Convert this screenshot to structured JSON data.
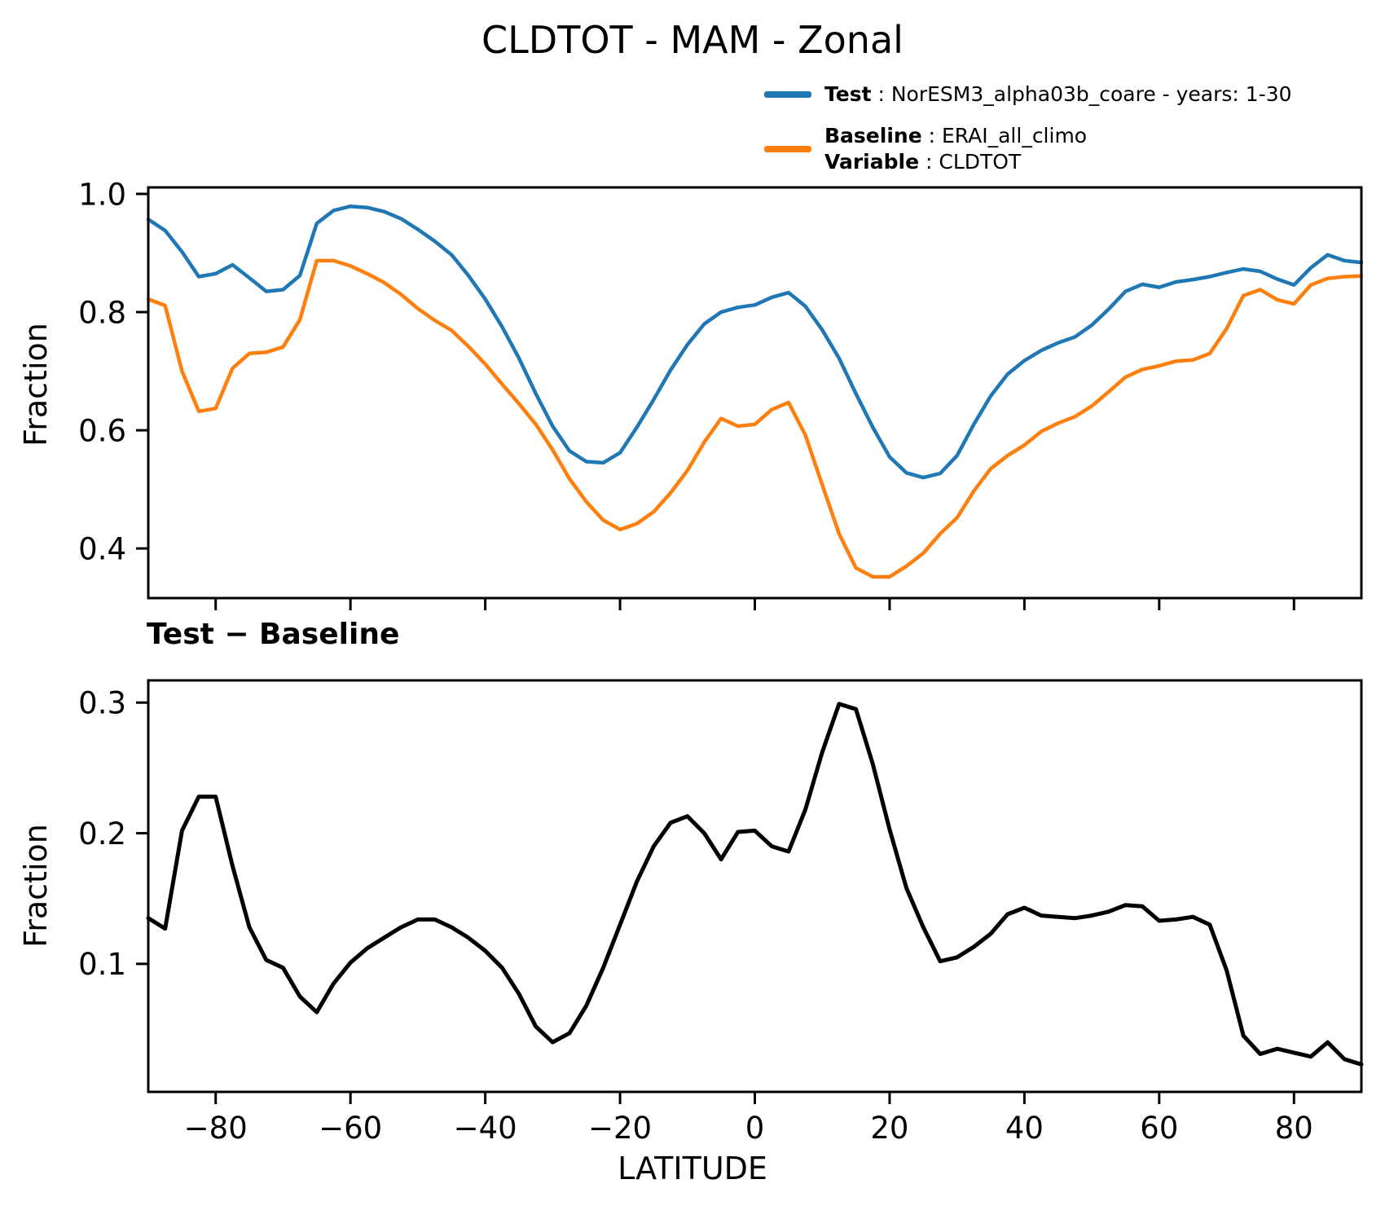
{
  "figure": {
    "title": "CLDTOT - MAM - Zonal",
    "subtitle": "Test − Baseline",
    "legend": {
      "test": {
        "bold": "Test",
        "rest": " : NorESM3_alpha03b_coare - years: 1-30"
      },
      "baseline": {
        "bold": "Baseline",
        "rest": " : ERAI_all_climo"
      },
      "variable": {
        "bold": "Variable",
        "rest": " : CLDTOT"
      }
    },
    "colors": {
      "test": "#1f77b4",
      "baseline": "#ff7f0e",
      "diff": "#000000"
    }
  },
  "chart_data": [
    {
      "type": "line",
      "title": "CLDTOT - MAM - Zonal",
      "xlabel": "",
      "ylabel": "Fraction",
      "xlim": [
        -90,
        90
      ],
      "ylim": [
        0.316,
        1.011
      ],
      "xticks": [
        -80,
        -60,
        -40,
        -20,
        0,
        20,
        40,
        60,
        80
      ],
      "xtick_labels": [],
      "yticks": [
        0.4,
        0.6,
        0.8,
        1.0
      ],
      "ytick_labels": [
        "0.4",
        "0.6",
        "0.8",
        "1.0"
      ],
      "grid": false,
      "legend_position": "above-right",
      "x": [
        -90,
        -87.5,
        -85,
        -82.5,
        -80,
        -77.5,
        -75,
        -72.5,
        -70,
        -67.5,
        -65,
        -62.5,
        -60,
        -57.5,
        -55,
        -52.5,
        -50,
        -47.5,
        -45,
        -42.5,
        -40,
        -37.5,
        -35,
        -32.5,
        -30,
        -27.5,
        -25,
        -22.5,
        -20,
        -17.5,
        -15,
        -12.5,
        -10,
        -7.5,
        -5,
        -2.5,
        0,
        2.5,
        5,
        7.5,
        10,
        12.5,
        15,
        17.5,
        20,
        22.5,
        25,
        27.5,
        30,
        32.5,
        35,
        37.5,
        40,
        42.5,
        45,
        47.5,
        50,
        52.5,
        55,
        57.5,
        60,
        62.5,
        65,
        67.5,
        70,
        72.5,
        75,
        77.5,
        80,
        82.5,
        85,
        87.5,
        90
      ],
      "series": [
        {
          "name": "Test",
          "legend_label": "Test : NorESM3_alpha03b_coare - years: 1-30",
          "color": "#1f77b4",
          "values": [
            0.957,
            0.938,
            0.902,
            0.86,
            0.865,
            0.88,
            0.858,
            0.835,
            0.838,
            0.862,
            0.95,
            0.972,
            0.979,
            0.977,
            0.97,
            0.958,
            0.94,
            0.92,
            0.897,
            0.862,
            0.822,
            0.775,
            0.722,
            0.662,
            0.607,
            0.565,
            0.547,
            0.545,
            0.562,
            0.605,
            0.652,
            0.702,
            0.745,
            0.78,
            0.8,
            0.808,
            0.812,
            0.825,
            0.833,
            0.81,
            0.77,
            0.722,
            0.662,
            0.605,
            0.555,
            0.528,
            0.52,
            0.527,
            0.557,
            0.61,
            0.658,
            0.695,
            0.718,
            0.735,
            0.748,
            0.758,
            0.778,
            0.805,
            0.835,
            0.847,
            0.842,
            0.851,
            0.855,
            0.86,
            0.867,
            0.873,
            0.869,
            0.856,
            0.846,
            0.875,
            0.897,
            0.887,
            0.884
          ]
        },
        {
          "name": "Baseline",
          "legend_label": "Baseline : ERAI_all_climo",
          "color": "#ff7f0e",
          "values": [
            0.822,
            0.811,
            0.7,
            0.632,
            0.637,
            0.705,
            0.73,
            0.732,
            0.741,
            0.787,
            0.887,
            0.887,
            0.878,
            0.865,
            0.85,
            0.83,
            0.806,
            0.786,
            0.769,
            0.742,
            0.712,
            0.678,
            0.645,
            0.61,
            0.567,
            0.518,
            0.479,
            0.448,
            0.432,
            0.442,
            0.462,
            0.494,
            0.532,
            0.58,
            0.62,
            0.607,
            0.61,
            0.635,
            0.647,
            0.592,
            0.508,
            0.425,
            0.367,
            0.352,
            0.352,
            0.37,
            0.392,
            0.425,
            0.452,
            0.497,
            0.535,
            0.557,
            0.575,
            0.598,
            0.612,
            0.623,
            0.641,
            0.665,
            0.69,
            0.703,
            0.709,
            0.717,
            0.719,
            0.73,
            0.772,
            0.828,
            0.838,
            0.821,
            0.814,
            0.846,
            0.857,
            0.86,
            0.861
          ]
        }
      ]
    },
    {
      "type": "line",
      "title": "Test − Baseline",
      "xlabel": "LATITUDE",
      "ylabel": "Fraction",
      "xlim": [
        -90,
        90
      ],
      "ylim": [
        0.002,
        0.317
      ],
      "xticks": [
        -80,
        -60,
        -40,
        -20,
        0,
        20,
        40,
        60,
        80
      ],
      "xtick_labels": [
        "−80",
        "−60",
        "−40",
        "−20",
        "0",
        "20",
        "40",
        "60",
        "80"
      ],
      "yticks": [
        0.1,
        0.2,
        0.3
      ],
      "ytick_labels": [
        "0.1",
        "0.2",
        "0.3"
      ],
      "grid": false,
      "x": [
        -90,
        -87.5,
        -85,
        -82.5,
        -80,
        -77.5,
        -75,
        -72.5,
        -70,
        -67.5,
        -65,
        -62.5,
        -60,
        -57.5,
        -55,
        -52.5,
        -50,
        -47.5,
        -45,
        -42.5,
        -40,
        -37.5,
        -35,
        -32.5,
        -30,
        -27.5,
        -25,
        -22.5,
        -20,
        -17.5,
        -15,
        -12.5,
        -10,
        -7.5,
        -5,
        -2.5,
        0,
        2.5,
        5,
        7.5,
        10,
        12.5,
        15,
        17.5,
        20,
        22.5,
        25,
        27.5,
        30,
        32.5,
        35,
        37.5,
        40,
        42.5,
        45,
        47.5,
        50,
        52.5,
        55,
        57.5,
        60,
        62.5,
        65,
        67.5,
        70,
        72.5,
        75,
        77.5,
        80,
        82.5,
        85,
        87.5,
        90
      ],
      "series": [
        {
          "name": "Test − Baseline",
          "color": "#000000",
          "values": [
            0.135,
            0.127,
            0.202,
            0.228,
            0.228,
            0.175,
            0.128,
            0.103,
            0.097,
            0.075,
            0.063,
            0.085,
            0.101,
            0.112,
            0.12,
            0.128,
            0.134,
            0.134,
            0.128,
            0.12,
            0.11,
            0.097,
            0.077,
            0.052,
            0.04,
            0.047,
            0.068,
            0.097,
            0.13,
            0.163,
            0.19,
            0.208,
            0.213,
            0.2,
            0.18,
            0.201,
            0.202,
            0.19,
            0.186,
            0.218,
            0.262,
            0.299,
            0.295,
            0.253,
            0.203,
            0.158,
            0.128,
            0.102,
            0.105,
            0.113,
            0.123,
            0.138,
            0.143,
            0.137,
            0.136,
            0.135,
            0.137,
            0.14,
            0.145,
            0.144,
            0.133,
            0.134,
            0.136,
            0.13,
            0.095,
            0.045,
            0.031,
            0.035,
            0.032,
            0.029,
            0.04,
            0.027,
            0.023
          ]
        }
      ]
    }
  ]
}
